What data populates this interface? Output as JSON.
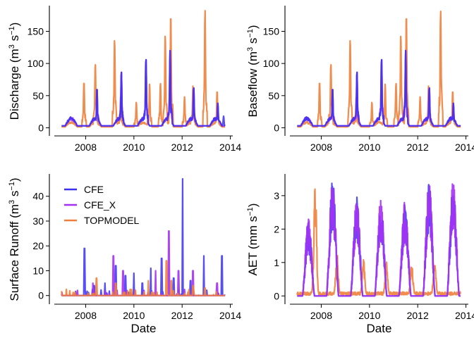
{
  "chart_data": [
    {
      "type": "line",
      "id": "discharge",
      "ylabel_main": "Discharge (m",
      "ylabel_sup1": "3",
      "ylabel_mid": " s",
      "ylabel_sup2": "−1",
      "ylabel_end": ")",
      "xlabel": "",
      "xlim": [
        2006.7,
        2014.1
      ],
      "ylim": [
        -5,
        190
      ],
      "xticks": [
        2008,
        2010,
        2012,
        2014
      ],
      "yticks": [
        0,
        50,
        100,
        150
      ],
      "series": [
        {
          "key": "topmodel",
          "peaks": [
            [
              2007.93,
              72
            ],
            [
              2008.4,
              100
            ],
            [
              2009.2,
              138
            ],
            [
              2009.45,
              48
            ],
            [
              2010.1,
              40
            ],
            [
              2010.65,
              68
            ],
            [
              2011.1,
              70
            ],
            [
              2011.3,
              145
            ],
            [
              2011.53,
              177
            ],
            [
              2012.1,
              48
            ],
            [
              2012.45,
              65
            ],
            [
              2012.95,
              183
            ],
            [
              2013.45,
              58
            ]
          ]
        },
        {
          "key": "cfe_x",
          "peaks": [
            [
              2008.47,
              62
            ],
            [
              2009.48,
              88
            ],
            [
              2010.5,
              108
            ],
            [
              2011.5,
              120
            ],
            [
              2012.48,
              63
            ],
            [
              2013.48,
              38
            ]
          ]
        },
        {
          "key": "cfe",
          "peaks": [
            [
              2008.47,
              62
            ],
            [
              2009.48,
              88
            ],
            [
              2010.5,
              108
            ],
            [
              2011.5,
              120
            ],
            [
              2012.48,
              63
            ],
            [
              2013.48,
              38
            ],
            [
              2013.72,
              18
            ]
          ]
        }
      ]
    },
    {
      "type": "line",
      "id": "baseflow",
      "ylabel_main": "Baseflow (m",
      "ylabel_sup1": "3",
      "ylabel_mid": " s",
      "ylabel_sup2": "−1",
      "ylabel_end": ")",
      "xlabel": "",
      "xlim": [
        2006.7,
        2014.1
      ],
      "ylim": [
        -5,
        190
      ],
      "xticks": [
        2008,
        2010,
        2012,
        2014
      ],
      "yticks": [
        0,
        50,
        100,
        150
      ],
      "series": [
        {
          "key": "topmodel",
          "peaks": [
            [
              2007.93,
              72
            ],
            [
              2008.4,
              100
            ],
            [
              2009.2,
              138
            ],
            [
              2009.45,
              48
            ],
            [
              2010.1,
              40
            ],
            [
              2010.65,
              68
            ],
            [
              2011.1,
              70
            ],
            [
              2011.3,
              145
            ],
            [
              2011.53,
              177
            ],
            [
              2012.1,
              48
            ],
            [
              2012.45,
              65
            ],
            [
              2012.95,
              182
            ],
            [
              2013.45,
              58
            ]
          ]
        },
        {
          "key": "cfe_x",
          "peaks": [
            [
              2008.47,
              62
            ],
            [
              2009.48,
              88
            ],
            [
              2010.5,
              108
            ],
            [
              2011.5,
              120
            ],
            [
              2012.48,
              63
            ],
            [
              2013.48,
              38
            ]
          ]
        },
        {
          "key": "cfe",
          "peaks": [
            [
              2008.47,
              62
            ],
            [
              2009.48,
              88
            ],
            [
              2010.5,
              108
            ],
            [
              2011.5,
              120
            ],
            [
              2012.48,
              63
            ],
            [
              2013.48,
              38
            ]
          ]
        }
      ]
    },
    {
      "type": "line",
      "id": "surface_runoff",
      "ylabel_main": "Surface Runoff (m",
      "ylabel_sup1": "3",
      "ylabel_mid": " s",
      "ylabel_sup2": "−1",
      "ylabel_end": ")",
      "xlabel": "Date",
      "xlim": [
        2006.7,
        2014.1
      ],
      "ylim": [
        -1.5,
        49
      ],
      "xticks": [
        2008,
        2010,
        2012,
        2014
      ],
      "yticks": [
        0,
        10,
        20,
        30,
        40
      ],
      "legend": {
        "placement": "top-left",
        "entries": [
          "CFE",
          "CFE_X",
          "TOPMODEL"
        ]
      },
      "series": [
        {
          "key": "cfe",
          "peaks": [
            [
              2007.95,
              19
            ],
            [
              2008.35,
              4
            ],
            [
              2008.8,
              5
            ],
            [
              2009.25,
              12
            ],
            [
              2009.65,
              8
            ],
            [
              2010.0,
              9
            ],
            [
              2010.35,
              5
            ],
            [
              2010.7,
              11
            ],
            [
              2011.15,
              15
            ],
            [
              2011.65,
              7
            ],
            [
              2012.02,
              47
            ],
            [
              2012.35,
              6
            ],
            [
              2012.9,
              16
            ],
            [
              2013.65,
              16
            ]
          ]
        },
        {
          "key": "cfe_x",
          "peaks": [
            [
              2008.3,
              5
            ],
            [
              2009.15,
              16
            ],
            [
              2009.55,
              10
            ],
            [
              2010.9,
              10
            ],
            [
              2011.45,
              26
            ],
            [
              2011.85,
              10
            ],
            [
              2012.45,
              10
            ],
            [
              2013.45,
              5
            ]
          ]
        },
        {
          "key": "topmodel",
          "peaks": [
            [
              2008.45,
              7
            ],
            [
              2009.25,
              5
            ],
            [
              2010.6,
              6
            ],
            [
              2011.35,
              14
            ],
            [
              2011.55,
              6
            ],
            [
              2012.45,
              4
            ],
            [
              2012.95,
              3
            ]
          ]
        }
      ]
    },
    {
      "type": "line",
      "id": "aet",
      "ylabel_main": "AET (mm s",
      "ylabel_sup1": "",
      "ylabel_mid": "",
      "ylabel_sup2": "−1",
      "ylabel_end": ")",
      "xlabel": "Date",
      "xlim": [
        2006.7,
        2014.1
      ],
      "ylim": [
        -0.1,
        3.65
      ],
      "xticks": [
        2008,
        2010,
        2012,
        2014
      ],
      "yticks": [
        0,
        1,
        2,
        3
      ],
      "series": [
        {
          "key": "cfe",
          "amp": [
            2.3,
            3.5,
            3.0,
            2.9,
            2.85,
            3.45,
            3.45
          ]
        },
        {
          "key": "cfe_x",
          "amp": [
            2.3,
            3.5,
            3.0,
            2.9,
            2.85,
            3.45,
            3.45
          ]
        },
        {
          "key": "topmodel",
          "peaks": [
            [
              2007.75,
              3.4
            ],
            [
              2008.65,
              1.3
            ],
            [
              2009.75,
              1.1
            ],
            [
              2010.7,
              1.1
            ],
            [
              2011.75,
              1.0
            ],
            [
              2012.7,
              1.1
            ],
            [
              2013.9,
              2.1
            ]
          ]
        }
      ]
    }
  ],
  "series_styles": {
    "cfe": {
      "name": "CFE",
      "color": "#3a2ff2"
    },
    "cfe_x": {
      "name": "CFE_X",
      "color": "#a431f5"
    },
    "topmodel": {
      "name": "TOPMODEL",
      "color": "#f07f3c"
    }
  }
}
